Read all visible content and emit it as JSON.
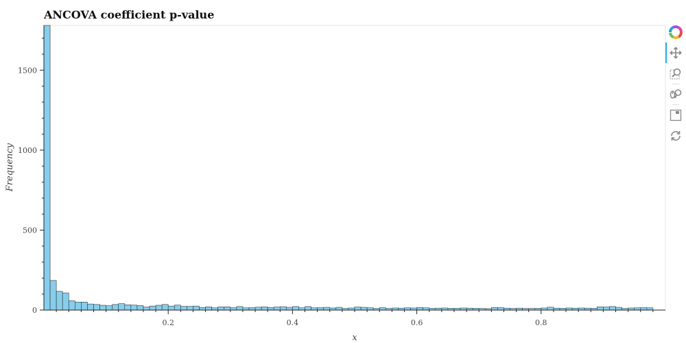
{
  "chart_data": {
    "type": "bar",
    "title": "ANCOVA coefficient p-value",
    "xlabel": "x",
    "ylabel": "Frequency",
    "xlim": [
      0.0,
      1.0
    ],
    "ylim": [
      0,
      1780
    ],
    "bin_width": 0.01,
    "x_ticks": [
      0.2,
      0.4,
      0.6,
      0.8
    ],
    "x_tick_labels": [
      "0.2",
      "0.4",
      "0.6",
      "0.8"
    ],
    "y_ticks": [
      0,
      500,
      1000,
      1500
    ],
    "y_tick_labels": [
      "0",
      "500",
      "1000",
      "1500"
    ],
    "bar_color": "#87ceeb",
    "edge_color": "#333333",
    "values": [
      1780,
      185,
      117,
      107,
      58,
      50,
      50,
      38,
      35,
      30,
      27,
      35,
      40,
      33,
      31,
      28,
      19,
      25,
      30,
      35,
      25,
      31,
      23,
      23,
      25,
      16,
      20,
      14,
      20,
      20,
      15,
      22,
      14,
      15,
      18,
      20,
      16,
      19,
      21,
      17,
      22,
      14,
      22,
      14,
      15,
      17,
      13,
      17,
      10,
      13,
      19,
      17,
      14,
      10,
      15,
      10,
      13,
      12,
      14,
      13,
      16,
      14,
      11,
      12,
      13,
      11,
      11,
      13,
      12,
      11,
      10,
      9,
      16,
      15,
      12,
      10,
      12,
      10,
      10,
      11,
      13,
      18,
      12,
      11,
      13,
      12,
      13,
      12,
      11,
      20,
      19,
      22,
      17,
      10,
      13,
      14,
      15,
      14
    ]
  },
  "toolbar": {
    "tools": [
      "bokeh-logo-icon",
      "pan-icon",
      "box-zoom-icon",
      "wheel-zoom-icon",
      "save-icon",
      "reset-icon"
    ]
  }
}
